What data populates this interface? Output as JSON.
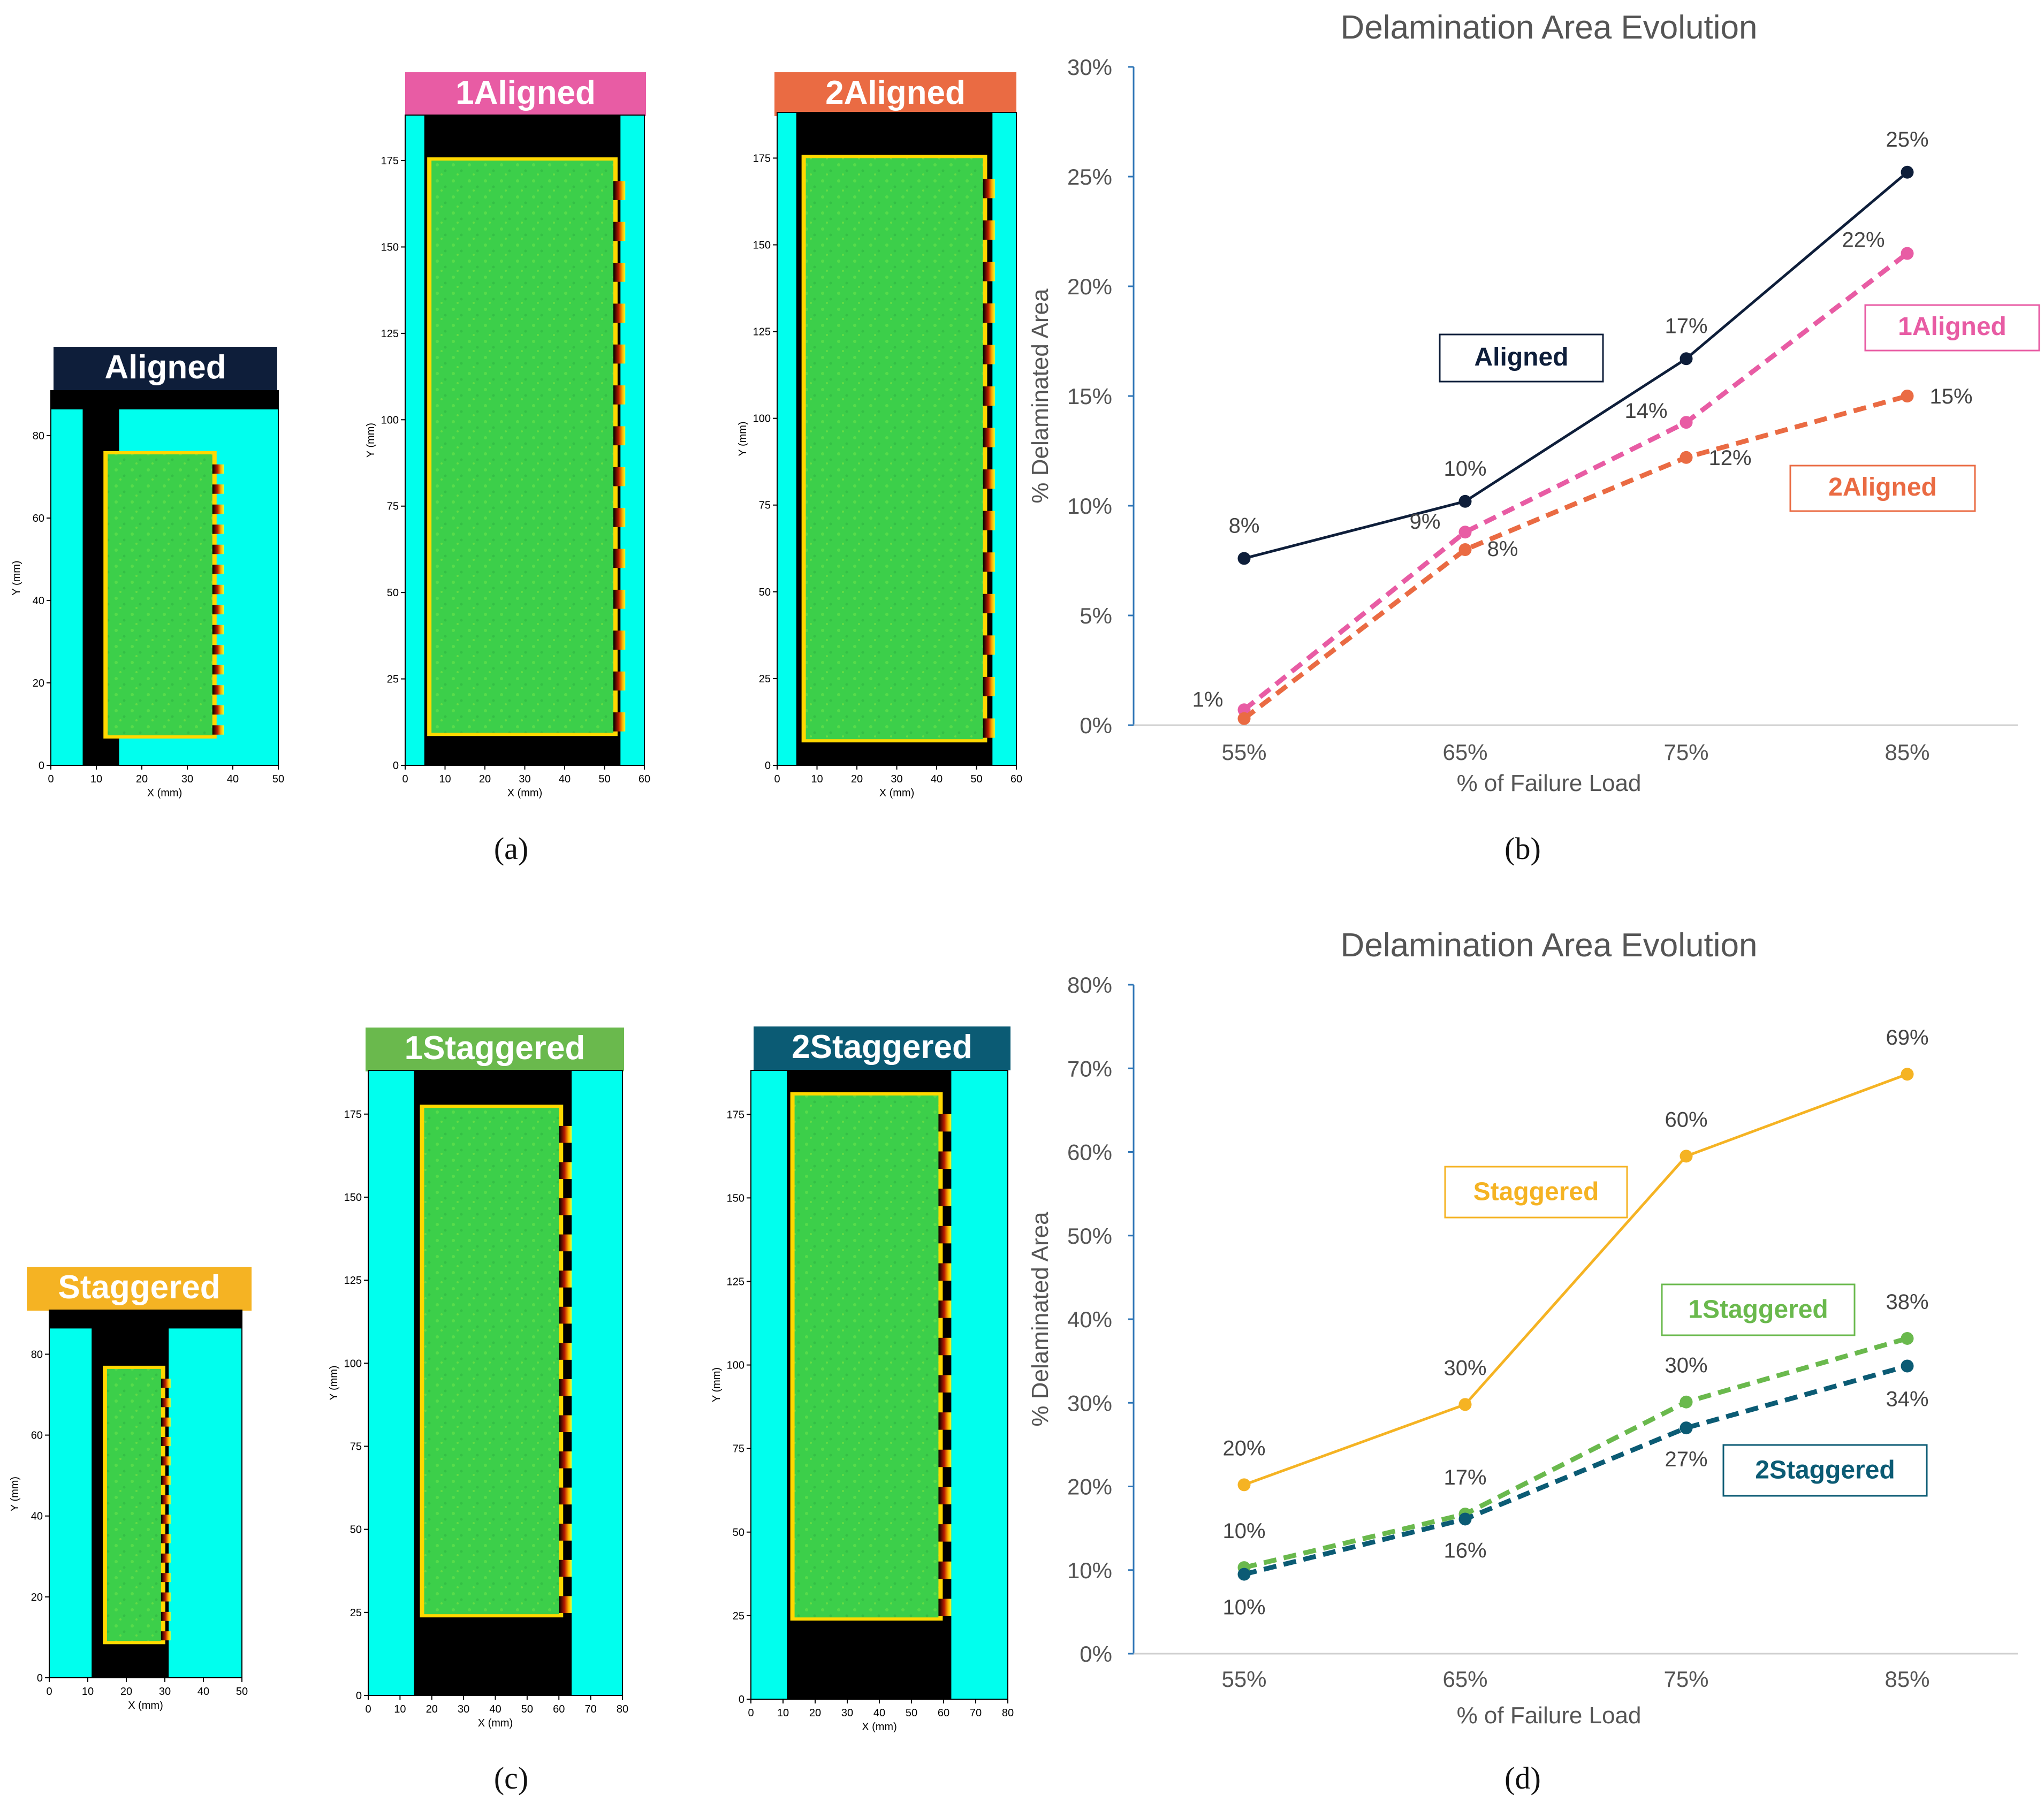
{
  "panel_labels": [
    "(a)",
    "(b)",
    "(c)",
    "(d)"
  ],
  "colors": {
    "aligned": "#0e1e3a",
    "aligned1": "#e85ca4",
    "aligned2": "#ea6b43",
    "staggered": "#f5b323",
    "staggered1": "#6ab94d",
    "staggered2": "#0b5b74",
    "scan_background": "#00ffee",
    "scan_green": "#3ccf4a",
    "axis": "#2e75b6",
    "text": "#555555"
  },
  "scans": [
    {
      "title": "Aligned",
      "header_color": "#0e1e3a",
      "xlabel": "X (mm)",
      "ylabel": "Y (mm)",
      "xticks": [
        "0",
        "10",
        "20",
        "30",
        "40",
        "50"
      ],
      "yticks": [
        "0",
        "20",
        "40",
        "60",
        "80"
      ]
    },
    {
      "title": "1Aligned",
      "header_color": "#e85ca4",
      "xlabel": "X (mm)",
      "ylabel": "Y (mm)",
      "xticks": [
        "0",
        "10",
        "20",
        "30",
        "40",
        "50",
        "60"
      ],
      "yticks": [
        "0",
        "25",
        "50",
        "75",
        "100",
        "125",
        "150",
        "175"
      ]
    },
    {
      "title": "2Aligned",
      "header_color": "#ea6b43",
      "xlabel": "X (mm)",
      "ylabel": "Y (mm)",
      "xticks": [
        "0",
        "10",
        "20",
        "30",
        "40",
        "50",
        "60"
      ],
      "yticks": [
        "0",
        "25",
        "50",
        "75",
        "100",
        "125",
        "150",
        "175"
      ]
    },
    {
      "title": "Staggered",
      "header_color": "#f5b323",
      "xlabel": "X (mm)",
      "ylabel": "Y (mm)",
      "xticks": [
        "0",
        "10",
        "20",
        "30",
        "40",
        "50"
      ],
      "yticks": [
        "0",
        "20",
        "40",
        "60",
        "80"
      ]
    },
    {
      "title": "1Staggered",
      "header_color": "#6ab94d",
      "xlabel": "X (mm)",
      "ylabel": "Y (mm)",
      "xticks": [
        "0",
        "10",
        "20",
        "30",
        "40",
        "50",
        "60",
        "70",
        "80"
      ],
      "yticks": [
        "0",
        "25",
        "50",
        "75",
        "100",
        "125",
        "150",
        "175"
      ]
    },
    {
      "title": "2Staggered",
      "header_color": "#0b5b74",
      "xlabel": "X (mm)",
      "ylabel": "Y (mm)",
      "xticks": [
        "0",
        "10",
        "20",
        "30",
        "40",
        "50",
        "60",
        "70",
        "80"
      ],
      "yticks": [
        "0",
        "25",
        "50",
        "75",
        "100",
        "125",
        "150",
        "175"
      ]
    }
  ],
  "chart_data": [
    {
      "type": "line",
      "title": "Delamination Area Evolution",
      "xlabel": "% of Failure Load",
      "ylabel": "% Delaminated Area",
      "categories": [
        "55%",
        "65%",
        "75%",
        "85%"
      ],
      "ylim": [
        0,
        30
      ],
      "yticks": [
        "0%",
        "5%",
        "10%",
        "15%",
        "20%",
        "25%",
        "30%"
      ],
      "grid": false,
      "series": [
        {
          "name": "Aligned",
          "values": [
            7.6,
            10.2,
            16.7,
            25.2
          ],
          "labels": [
            "8%",
            "10%",
            "17%",
            "25%"
          ],
          "color": "#0e1e3a",
          "dashed": false
        },
        {
          "name": "1Aligned",
          "values": [
            0.7,
            8.8,
            13.8,
            21.5
          ],
          "labels": [
            "1%",
            "9%",
            "14%",
            "22%"
          ],
          "color": "#e85ca4",
          "dashed": true
        },
        {
          "name": "2Aligned",
          "values": [
            0.3,
            8.0,
            12.2,
            15.0
          ],
          "labels": [
            "",
            "8%",
            "12%",
            "15%"
          ],
          "color": "#ea6b43",
          "dashed": true
        }
      ]
    },
    {
      "type": "line",
      "title": "Delamination Area Evolution",
      "xlabel": "% of Failure Load",
      "ylabel": "% Delaminated Area",
      "categories": [
        "55%",
        "65%",
        "75%",
        "85%"
      ],
      "ylim": [
        0,
        80
      ],
      "yticks": [
        "0%",
        "10%",
        "20%",
        "30%",
        "40%",
        "50%",
        "60%",
        "70%",
        "80%"
      ],
      "grid": false,
      "series": [
        {
          "name": "Staggered",
          "values": [
            20.2,
            29.8,
            59.5,
            69.3
          ],
          "labels": [
            "20%",
            "30%",
            "60%",
            "69%"
          ],
          "color": "#f5b323",
          "dashed": false
        },
        {
          "name": "1Staggered",
          "values": [
            10.3,
            16.7,
            30.1,
            37.7
          ],
          "labels": [
            "10%",
            "17%",
            "30%",
            "38%"
          ],
          "color": "#6ab94d",
          "dashed": true
        },
        {
          "name": "2Staggered",
          "values": [
            9.5,
            16.1,
            27.0,
            34.4
          ],
          "labels": [
            "10%",
            "16%",
            "27%",
            "34%"
          ],
          "color": "#0b5b74",
          "dashed": true
        }
      ]
    }
  ]
}
